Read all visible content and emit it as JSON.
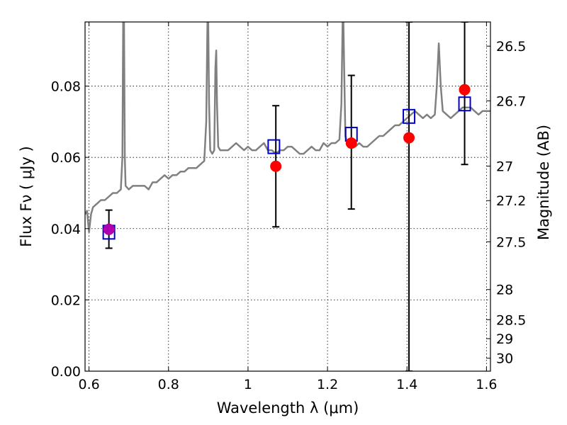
{
  "chart_data": {
    "type": "line",
    "xlabel": "Wavelength  λ (μm)",
    "ylabel": "Flux  Fν  ( μJy )",
    "y2label": "Magnitude (AB)",
    "xlim": [
      0.59,
      1.61
    ],
    "ylim": [
      0.0,
      0.098
    ],
    "grid": true,
    "x_ticks": [
      {
        "value": 0.6,
        "label": "0.6"
      },
      {
        "value": 0.8,
        "label": "0.8"
      },
      {
        "value": 1.0,
        "label": "1"
      },
      {
        "value": 1.2,
        "label": "1.2"
      },
      {
        "value": 1.4,
        "label": "1.4"
      },
      {
        "value": 1.6,
        "label": "1.6"
      }
    ],
    "y_ticks": [
      {
        "value": 0.0,
        "label": "0.00"
      },
      {
        "value": 0.02,
        "label": "0.02"
      },
      {
        "value": 0.04,
        "label": "0.04"
      },
      {
        "value": 0.06,
        "label": "0.06"
      },
      {
        "value": 0.08,
        "label": "0.08"
      }
    ],
    "magnitude_ticks": [
      {
        "mag": 26.5,
        "label": "26.5"
      },
      {
        "mag": 26.7,
        "label": "26.7"
      },
      {
        "mag": 27.0,
        "label": "27"
      },
      {
        "mag": 27.2,
        "label": "27.2"
      },
      {
        "mag": 27.5,
        "label": "27.5"
      },
      {
        "mag": 28.0,
        "label": "28"
      },
      {
        "mag": 28.5,
        "label": "28.5"
      },
      {
        "mag": 29.0,
        "label": "29"
      },
      {
        "mag": 30.0,
        "label": "30"
      }
    ],
    "series": [
      {
        "kind": "line",
        "color": "#808080",
        "x": [
          0.59,
          0.595,
          0.6,
          0.605,
          0.61,
          0.62,
          0.63,
          0.64,
          0.65,
          0.66,
          0.67,
          0.68,
          0.684,
          0.686,
          0.688,
          0.69,
          0.692,
          0.7,
          0.71,
          0.72,
          0.73,
          0.74,
          0.75,
          0.76,
          0.77,
          0.78,
          0.79,
          0.8,
          0.81,
          0.82,
          0.83,
          0.84,
          0.85,
          0.86,
          0.87,
          0.88,
          0.89,
          0.895,
          0.898,
          0.9,
          0.902,
          0.905,
          0.91,
          0.915,
          0.918,
          0.92,
          0.922,
          0.925,
          0.93,
          0.94,
          0.95,
          0.96,
          0.97,
          0.98,
          0.99,
          1.0,
          1.01,
          1.02,
          1.03,
          1.04,
          1.05,
          1.06,
          1.07,
          1.08,
          1.09,
          1.1,
          1.11,
          1.12,
          1.13,
          1.14,
          1.15,
          1.16,
          1.17,
          1.18,
          1.19,
          1.2,
          1.21,
          1.22,
          1.23,
          1.235,
          1.238,
          1.24,
          1.242,
          1.245,
          1.25,
          1.26,
          1.27,
          1.28,
          1.29,
          1.3,
          1.31,
          1.32,
          1.33,
          1.34,
          1.35,
          1.36,
          1.37,
          1.38,
          1.39,
          1.4,
          1.41,
          1.42,
          1.43,
          1.44,
          1.45,
          1.46,
          1.47,
          1.475,
          1.48,
          1.485,
          1.49,
          1.5,
          1.51,
          1.52,
          1.53,
          1.54,
          1.55,
          1.56,
          1.57,
          1.58,
          1.59,
          1.6,
          1.61
        ],
        "y": [
          0.044,
          0.045,
          0.039,
          0.044,
          0.046,
          0.047,
          0.048,
          0.048,
          0.049,
          0.05,
          0.05,
          0.051,
          0.06,
          0.098,
          0.098,
          0.06,
          0.052,
          0.051,
          0.052,
          0.052,
          0.052,
          0.052,
          0.051,
          0.053,
          0.053,
          0.054,
          0.055,
          0.054,
          0.055,
          0.055,
          0.056,
          0.056,
          0.057,
          0.057,
          0.057,
          0.058,
          0.059,
          0.07,
          0.098,
          0.098,
          0.075,
          0.062,
          0.061,
          0.062,
          0.085,
          0.09,
          0.075,
          0.063,
          0.062,
          0.062,
          0.062,
          0.063,
          0.064,
          0.063,
          0.062,
          0.063,
          0.062,
          0.062,
          0.063,
          0.064,
          0.062,
          0.062,
          0.061,
          0.062,
          0.062,
          0.063,
          0.063,
          0.062,
          0.061,
          0.061,
          0.062,
          0.063,
          0.062,
          0.062,
          0.064,
          0.063,
          0.064,
          0.064,
          0.065,
          0.075,
          0.098,
          0.098,
          0.085,
          0.066,
          0.064,
          0.064,
          0.063,
          0.064,
          0.063,
          0.063,
          0.064,
          0.065,
          0.066,
          0.066,
          0.067,
          0.068,
          0.069,
          0.069,
          0.07,
          0.071,
          0.072,
          0.073,
          0.072,
          0.071,
          0.072,
          0.071,
          0.072,
          0.08,
          0.092,
          0.08,
          0.073,
          0.072,
          0.071,
          0.072,
          0.073,
          0.074,
          0.074,
          0.074,
          0.073,
          0.072,
          0.073,
          0.073,
          0.073
        ]
      },
      {
        "kind": "markers",
        "marker": "square",
        "color": "#0000cc",
        "x": [
          0.65,
          1.065,
          1.26,
          1.405,
          1.545
        ],
        "y": [
          0.039,
          0.063,
          0.0665,
          0.0715,
          0.075
        ]
      },
      {
        "kind": "markers",
        "marker": "circle",
        "color": "#ff0000",
        "x": [
          1.07,
          1.26,
          1.405,
          1.545
        ],
        "y": [
          0.0575,
          0.064,
          0.0655,
          0.079
        ],
        "y_err_low": [
          0.0405,
          0.0455,
          0.0,
          0.058
        ],
        "y_err_high": [
          0.0745,
          0.083,
          0.098,
          0.098
        ]
      },
      {
        "kind": "markers",
        "marker": "circle",
        "color": "#b000b0",
        "x": [
          0.65
        ],
        "y": [
          0.0398
        ],
        "y_err_low": [
          0.0345
        ],
        "y_err_high": [
          0.0452
        ]
      }
    ]
  }
}
